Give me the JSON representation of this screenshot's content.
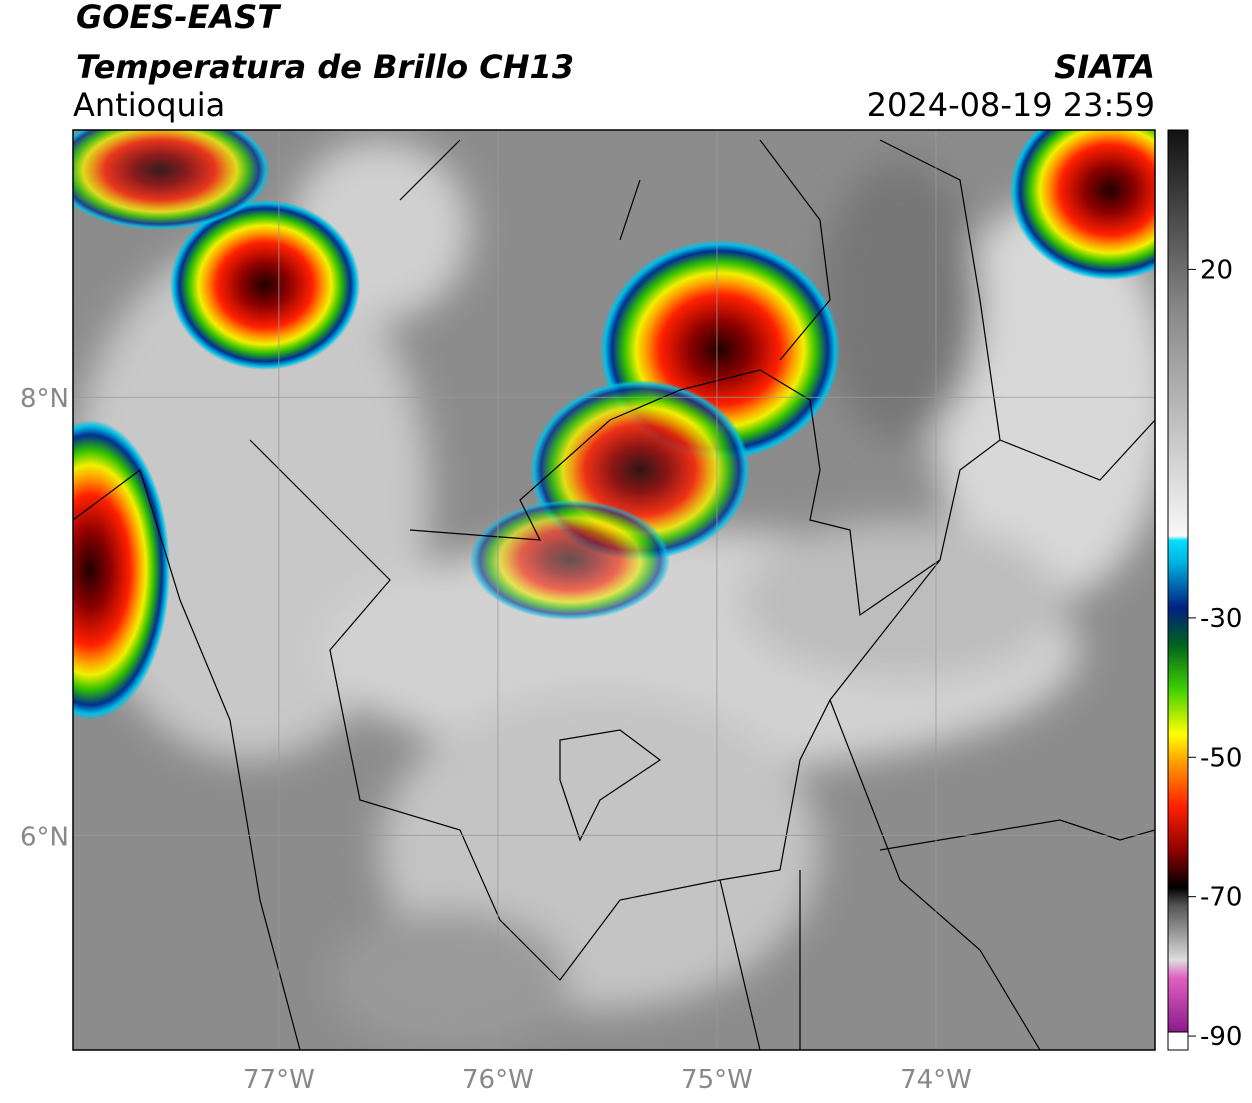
{
  "header": {
    "title": "GOES-EAST",
    "subtitle": "Temperatura de Brillo CH13",
    "region": "Antioquia",
    "source": "SIATA",
    "datetime": "2024-08-19 23:59"
  },
  "map": {
    "xlim": [
      -77.94,
      -73
    ],
    "ylim": [
      5.02,
      9.22
    ],
    "xticks": [
      {
        "value": -77,
        "label": "77°W"
      },
      {
        "value": -76,
        "label": "76°W"
      },
      {
        "value": -75,
        "label": "75°W"
      },
      {
        "value": -74,
        "label": "74°W"
      }
    ],
    "yticks": [
      {
        "value": 8,
        "label": "8°N"
      },
      {
        "value": 6,
        "label": "6°N"
      }
    ],
    "grid": true
  },
  "colorbar": {
    "lim": [
      -92,
      40
    ],
    "ticks": [
      20,
      -30,
      -50,
      -70,
      -90
    ]
  }
}
